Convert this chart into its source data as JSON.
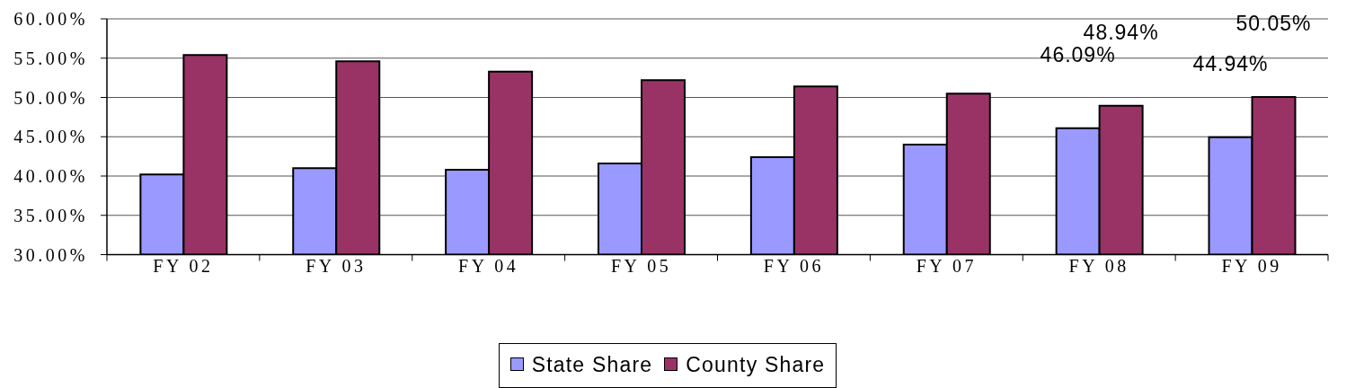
{
  "chart_data": {
    "type": "bar",
    "categories": [
      "FY 02",
      "FY 03",
      "FY 04",
      "FY 05",
      "FY 06",
      "FY 07",
      "FY 08",
      "FY 09"
    ],
    "series": [
      {
        "name": "State Share",
        "color": "#9999ff",
        "values": [
          40.2,
          41.0,
          40.8,
          41.6,
          42.4,
          44.0,
          46.09,
          44.94
        ],
        "value_labels": [
          null,
          null,
          null,
          null,
          null,
          null,
          "46.09%",
          "44.94%"
        ]
      },
      {
        "name": "County Share",
        "color": "#993366",
        "values": [
          55.4,
          54.6,
          53.3,
          52.2,
          51.4,
          50.5,
          48.94,
          50.05
        ],
        "value_labels": [
          null,
          null,
          null,
          null,
          null,
          null,
          "48.94%",
          "50.05%"
        ]
      }
    ],
    "ylim": [
      30,
      60
    ],
    "yticks": [
      {
        "value": 30,
        "label": "30.00%"
      },
      {
        "value": 35,
        "label": "35.00%"
      },
      {
        "value": 40,
        "label": "40.00%"
      },
      {
        "value": 45,
        "label": "45.00%"
      },
      {
        "value": 50,
        "label": "50.00%"
      },
      {
        "value": 55,
        "label": "55.00%"
      },
      {
        "value": 60,
        "label": "60.00%"
      }
    ],
    "grid": "y",
    "legend": "bottom"
  }
}
